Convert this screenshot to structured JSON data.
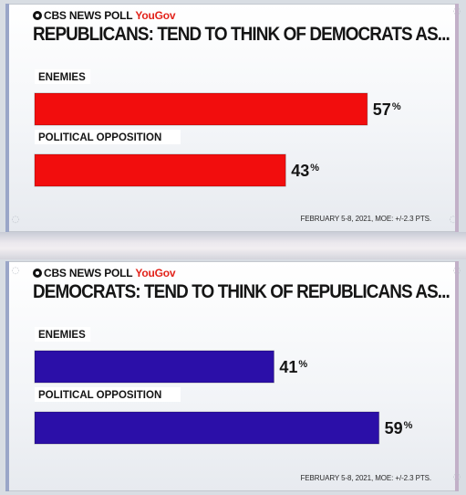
{
  "chart_data": [
    {
      "type": "bar",
      "orientation": "horizontal",
      "source": "CBS NEWS POLL",
      "partner": "YouGov",
      "title": "REPUBLICANS: TEND TO THINK OF DEMOCRATS AS...",
      "categories": [
        "ENEMIES",
        "POLITICAL OPPOSITION"
      ],
      "values": [
        57,
        43
      ],
      "value_suffix": "%",
      "bar_color": "#f20d0d",
      "xlim": [
        0,
        100
      ],
      "footnote": "FEBRUARY 5-8, 2021, MOE: +/-2.3 PTS."
    },
    {
      "type": "bar",
      "orientation": "horizontal",
      "source": "CBS NEWS POLL",
      "partner": "YouGov",
      "title": "DEMOCRATS: TEND TO THINK OF REPUBLICANS AS...",
      "categories": [
        "ENEMIES",
        "POLITICAL OPPOSITION"
      ],
      "values": [
        41,
        59
      ],
      "value_suffix": "%",
      "bar_color": "#2b0fa8",
      "xlim": [
        0,
        100
      ],
      "footnote": "FEBRUARY 5-8, 2021, MOE: +/-2.3 PTS."
    }
  ]
}
